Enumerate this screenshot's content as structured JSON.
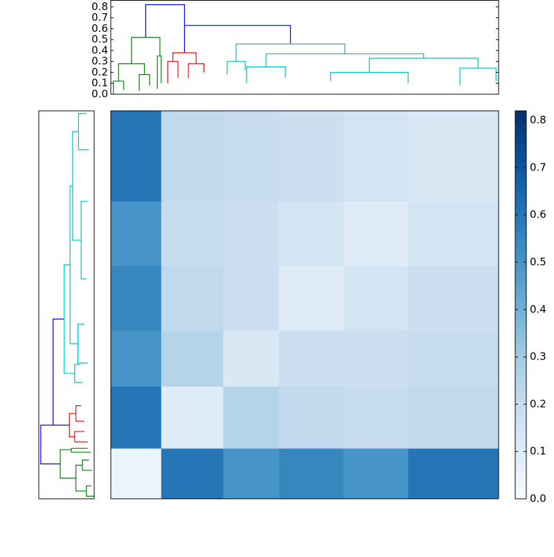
{
  "chart_data": [
    {
      "type": "dendrogram",
      "xlim": [
        0,
        300
      ],
      "ylim": [
        0,
        0.85
      ],
      "yticks": [
        {
          "value": 0,
          "label": "0.0"
        },
        0.1,
        0.2,
        0.3,
        0.4,
        0.5,
        0.6,
        0.7,
        0.8
      ],
      "links": [
        {
          "x": [
            27,
            27,
            57,
            57
          ],
          "y": [
            0.52,
            0.82,
            0.82,
            0.63
          ],
          "color": "#0000ff"
        },
        {
          "x": [
            57,
            57,
            139,
            139
          ],
          "y": [
            0.38,
            0.63,
            0.63,
            0.46
          ],
          "color": "#0000ff"
        },
        {
          "x": [
            16,
            16,
            38,
            38
          ],
          "y": [
            0.28,
            0.52,
            0.52,
            0.35
          ],
          "color": "#008000"
        },
        {
          "x": [
            6,
            6,
            26,
            26
          ],
          "y": [
            0.12,
            0.28,
            0.28,
            0.18
          ],
          "color": "#008000"
        },
        {
          "x": [
            36,
            36,
            39,
            39
          ],
          "y": [
            0.05,
            0.35,
            0.35,
            0.1
          ],
          "color": "#008000"
        },
        {
          "x": [
            2,
            2,
            10,
            10
          ],
          "y": [
            0,
            0.12,
            0.12,
            0.04
          ],
          "color": "#008000"
        },
        {
          "x": [
            22,
            22,
            30,
            30
          ],
          "y": [
            0.03,
            0.18,
            0.18,
            0.08
          ],
          "color": "#008000"
        },
        {
          "x": [
            48,
            48,
            66,
            66
          ],
          "y": [
            0.3,
            0.38,
            0.38,
            0.28
          ],
          "color": "#ff0000"
        },
        {
          "x": [
            44,
            44,
            52,
            52
          ],
          "y": [
            0.1,
            0.3,
            0.3,
            0.15
          ],
          "color": "#ff0000"
        },
        {
          "x": [
            60,
            60,
            72,
            72
          ],
          "y": [
            0.15,
            0.28,
            0.28,
            0.2
          ],
          "color": "#ff0000"
        },
        {
          "x": [
            97,
            97,
            181,
            181
          ],
          "y": [
            0.3,
            0.46,
            0.46,
            0.37
          ],
          "color": "#00bfbf"
        },
        {
          "x": [
            90,
            90,
            104,
            104
          ],
          "y": [
            0.18,
            0.3,
            0.3,
            0.22
          ],
          "color": "#00bfbf"
        },
        {
          "x": [
            120,
            120,
            242,
            242
          ],
          "y": [
            0.25,
            0.37,
            0.37,
            0.33
          ],
          "color": "#00bfbf"
        },
        {
          "x": [
            200,
            200,
            284,
            284
          ],
          "y": [
            0.2,
            0.33,
            0.33,
            0.24
          ],
          "color": "#00bfbf"
        },
        {
          "x": [
            105,
            105,
            135,
            135
          ],
          "y": [
            0.1,
            0.25,
            0.25,
            0.15
          ],
          "color": "#00bfbf"
        },
        {
          "x": [
            270,
            270,
            298,
            298
          ],
          "y": [
            0.08,
            0.24,
            0.24,
            0.12
          ],
          "color": "#00bfbf"
        },
        {
          "x": [
            170,
            170,
            230,
            230
          ],
          "y": [
            0.12,
            0.2,
            0.2,
            0.1
          ],
          "color": "#00bfbf"
        }
      ]
    },
    {
      "type": "heatmap",
      "bins": [
        0,
        39,
        87,
        130,
        180,
        230,
        300
      ],
      "z": [
        [
          0.05,
          0.6,
          0.5,
          0.55,
          0.5,
          0.6
        ],
        [
          0.6,
          0.1,
          0.25,
          0.22,
          0.2,
          0.22
        ],
        [
          0.5,
          0.25,
          0.12,
          0.18,
          0.18,
          0.2
        ],
        [
          0.55,
          0.22,
          0.18,
          0.1,
          0.15,
          0.18
        ],
        [
          0.5,
          0.2,
          0.18,
          0.15,
          0.1,
          0.15
        ],
        [
          0.6,
          0.22,
          0.2,
          0.18,
          0.15,
          0.12
        ]
      ],
      "colormap": [
        "#f7fbff",
        "#deebf7",
        "#c6dbef",
        "#9ecae1",
        "#6baed6",
        "#4292c6",
        "#2171b5",
        "#08519c",
        "#08306b"
      ],
      "zlim": [
        0,
        0.82
      ],
      "zticks": [
        {
          "value": 0,
          "label": "0.0"
        },
        0.1,
        0.2,
        0.3,
        0.4,
        0.5,
        0.6,
        0.7,
        0.8
      ]
    }
  ]
}
